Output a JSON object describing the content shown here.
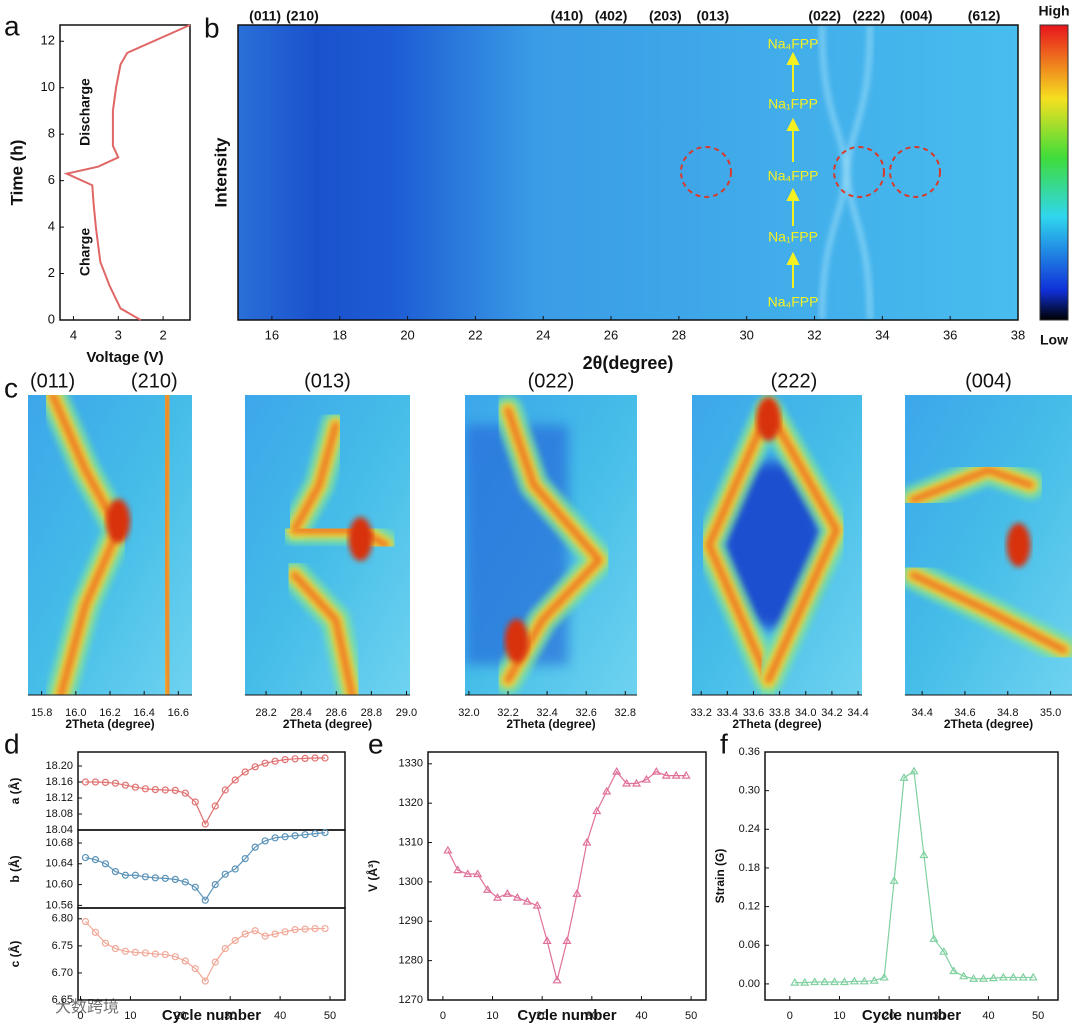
{
  "chart_data": [
    {
      "type": "line",
      "panel": "a",
      "xlabel": "Voltage (V)",
      "ylabel": "Time (h)",
      "xlim": [
        4.3,
        1.4
      ],
      "xticks": [
        4,
        3,
        2
      ],
      "ylim": [
        0,
        12.7
      ],
      "yticks": [
        0,
        2,
        4,
        6,
        8,
        10,
        12
      ],
      "annotations": [
        "Discharge",
        "Charge"
      ],
      "x": [
        2.5,
        2.95,
        3.2,
        3.4,
        3.5,
        3.55,
        3.58,
        4.15,
        3.45,
        3.0,
        3.12,
        3.12,
        3.05,
        2.95,
        2.8,
        1.4
      ],
      "series": [
        {
          "color": "#e06666",
          "values": [
            0,
            0.5,
            1.5,
            2.5,
            4,
            5,
            5.8,
            6.3,
            6.6,
            7,
            7.5,
            9,
            10,
            11,
            11.5,
            12.7
          ]
        }
      ]
    },
    {
      "type": "heatmap",
      "panel": "b",
      "xlabel": "2θ(degree)",
      "ylabel": "Intensity",
      "xlim": [
        15,
        38
      ],
      "xticks": [
        16,
        18,
        20,
        22,
        24,
        26,
        28,
        30,
        32,
        34,
        36,
        38
      ],
      "peaks": [
        {
          "label": "(011)",
          "x": 15.8
        },
        {
          "label": "(210)",
          "x": 16.9
        },
        {
          "label": "(410)",
          "x": 24.7
        },
        {
          "label": "(402)",
          "x": 26.0
        },
        {
          "label": "(203)",
          "x": 27.6
        },
        {
          "label": "(013)",
          "x": 29.0
        },
        {
          "label": "(022)",
          "x": 32.3
        },
        {
          "label": "(222)",
          "x": 33.6
        },
        {
          "label": "(004)",
          "x": 35.0
        },
        {
          "label": "(612)",
          "x": 37.0
        }
      ],
      "phases": [
        "Na₄FPP",
        "Na₁FPP",
        "Na₄FPP",
        "Na₁FPP",
        "Na₄FPP"
      ],
      "colorbar": {
        "high": "High",
        "low": "Low"
      }
    },
    {
      "type": "surface",
      "panel": "c",
      "titles": [
        "(011)",
        "(210)"
      ],
      "xlabel": "2Theta (degree)",
      "xlim": [
        15.72,
        16.68
      ],
      "xticks": [
        15.8,
        {
          "value": 16,
          "label": "16.0"
        },
        16.2,
        16.4,
        16.6
      ]
    },
    {
      "type": "surface",
      "titles": [
        "(013)"
      ],
      "xlabel": "2Theta (degree)",
      "xlim": [
        28.08,
        29.02
      ],
      "xticks": [
        28.2,
        28.4,
        28.6,
        28.8,
        {
          "value": 29,
          "label": "29.0"
        }
      ]
    },
    {
      "type": "surface",
      "titles": [
        "(022)"
      ],
      "xlabel": "2Theta (degree)",
      "xlim": [
        31.98,
        32.86
      ],
      "xticks": [
        {
          "value": 32,
          "label": "32.0"
        },
        32.2,
        32.4,
        32.6,
        32.8
      ]
    },
    {
      "type": "surface",
      "titles": [
        "(222)"
      ],
      "xlabel": "2Theta (degree)",
      "xlim": [
        33.13,
        34.43
      ],
      "xticks": [
        33.2,
        33.4,
        33.6,
        33.8,
        {
          "value": 34,
          "label": "34.0"
        },
        34.2,
        34.4
      ]
    },
    {
      "type": "surface",
      "titles": [
        "(004)"
      ],
      "xlabel": "2Theta (degree)",
      "xlim": [
        34.32,
        35.1
      ],
      "xticks": [
        34.4,
        34.6,
        34.8,
        {
          "value": 35,
          "label": "35.0"
        }
      ]
    },
    {
      "type": "line",
      "panel": "d",
      "ylabel": "a (Å)",
      "xlim": [
        -0.5,
        53
      ],
      "ylim": [
        18.04,
        18.235
      ],
      "yticks": [
        18.04,
        18.08,
        18.12,
        18.16,
        {
          "value": 18.2,
          "label": "18.20"
        }
      ],
      "marker": "circle",
      "x": [
        1,
        3,
        5,
        7,
        9,
        11,
        13,
        15,
        17,
        19,
        21,
        23,
        25,
        27,
        29,
        31,
        33,
        35,
        37,
        39,
        41,
        43,
        45,
        47,
        49
      ],
      "series": [
        {
          "color": "#e07070",
          "values": [
            18.16,
            18.16,
            18.159,
            18.157,
            18.152,
            18.147,
            18.143,
            18.141,
            18.14,
            18.139,
            18.132,
            18.11,
            18.055,
            18.1,
            18.14,
            18.165,
            18.185,
            18.198,
            18.207,
            18.212,
            18.216,
            18.218,
            18.219,
            18.22,
            18.22
          ]
        }
      ]
    },
    {
      "type": "line",
      "ylabel": "b (Å)",
      "xlim": [
        -0.5,
        53
      ],
      "ylim": [
        10.555,
        10.705
      ],
      "yticks": [
        10.56,
        {
          "value": 10.6,
          "label": "10.60"
        },
        10.64,
        10.68
      ],
      "marker": "circle",
      "x": [
        1,
        3,
        5,
        7,
        9,
        11,
        13,
        15,
        17,
        19,
        21,
        23,
        25,
        27,
        29,
        31,
        33,
        35,
        37,
        39,
        41,
        43,
        45,
        47,
        49
      ],
      "series": [
        {
          "color": "#5b93b8",
          "values": [
            10.652,
            10.648,
            10.64,
            10.625,
            10.618,
            10.618,
            10.615,
            10.613,
            10.612,
            10.61,
            10.605,
            10.595,
            10.57,
            10.6,
            10.62,
            10.63,
            10.65,
            10.672,
            10.684,
            10.69,
            10.692,
            10.694,
            10.696,
            10.698,
            10.7
          ]
        }
      ]
    },
    {
      "type": "line",
      "ylabel": "c (Å)",
      "xlabel": "Cycle number",
      "xlim": [
        -0.5,
        53
      ],
      "xticks": [
        0,
        10,
        20,
        30,
        40,
        50
      ],
      "ylim": [
        6.65,
        6.82
      ],
      "yticks": [
        6.65,
        {
          "value": 6.7,
          "label": "6.70"
        },
        6.75,
        {
          "value": 6.8,
          "label": "6.80"
        }
      ],
      "marker": "circle",
      "x": [
        1,
        3,
        5,
        7,
        9,
        11,
        13,
        15,
        17,
        19,
        21,
        23,
        25,
        27,
        29,
        31,
        33,
        35,
        37,
        39,
        41,
        43,
        45,
        47,
        49
      ],
      "series": [
        {
          "color": "#f0a898",
          "values": [
            6.795,
            6.775,
            6.755,
            6.745,
            6.74,
            6.738,
            6.737,
            6.735,
            6.734,
            6.73,
            6.722,
            6.708,
            6.685,
            6.72,
            6.745,
            6.76,
            6.772,
            6.778,
            6.768,
            6.772,
            6.776,
            6.78,
            6.781,
            6.782,
            6.782
          ]
        }
      ]
    },
    {
      "type": "line",
      "panel": "e",
      "ylabel": "V (Å³)",
      "xlabel": "Cycle number",
      "xlim": [
        -3,
        53
      ],
      "xticks": [
        0,
        10,
        20,
        30,
        40,
        50
      ],
      "ylim": [
        1270,
        1333
      ],
      "yticks": [
        1270,
        1280,
        1290,
        1300,
        1310,
        1320,
        1330
      ],
      "marker": "triangle",
      "x": [
        1,
        3,
        5,
        7,
        9,
        11,
        13,
        15,
        17,
        19,
        21,
        23,
        25,
        27,
        29,
        31,
        33,
        35,
        37,
        39,
        41,
        43,
        45,
        47,
        49
      ],
      "series": [
        {
          "color": "#e0709a",
          "values": [
            1308,
            1303,
            1302,
            1302,
            1298,
            1296,
            1297,
            1296,
            1295,
            1294,
            1285,
            1275,
            1285,
            1297,
            1310,
            1318,
            1323,
            1328,
            1325,
            1325,
            1326,
            1328,
            1327,
            1327,
            1327
          ]
        }
      ]
    },
    {
      "type": "line",
      "panel": "f",
      "ylabel": "Strain (G)",
      "xlabel": "Cycle number",
      "xlim": [
        -5,
        54
      ],
      "xticks": [
        0,
        10,
        20,
        30,
        40,
        50
      ],
      "ylim": [
        -0.025,
        0.36
      ],
      "yticks": [
        {
          "value": 0,
          "label": "0.00"
        },
        0.06,
        0.12,
        0.18,
        0.24,
        {
          "value": 0.3,
          "label": "0.30"
        },
        0.36
      ],
      "marker": "triangle",
      "x": [
        1,
        3,
        5,
        7,
        9,
        11,
        13,
        15,
        17,
        19,
        21,
        23,
        25,
        27,
        29,
        31,
        33,
        35,
        37,
        39,
        41,
        43,
        45,
        47,
        49
      ],
      "series": [
        {
          "color": "#80d0a0",
          "values": [
            0.002,
            0.002,
            0.003,
            0.003,
            0.003,
            0.003,
            0.004,
            0.004,
            0.005,
            0.01,
            0.16,
            0.32,
            0.33,
            0.2,
            0.07,
            0.05,
            0.02,
            0.012,
            0.008,
            0.008,
            0.009,
            0.01,
            0.01,
            0.01,
            0.01
          ]
        }
      ]
    }
  ],
  "watermark": "大数跨境"
}
